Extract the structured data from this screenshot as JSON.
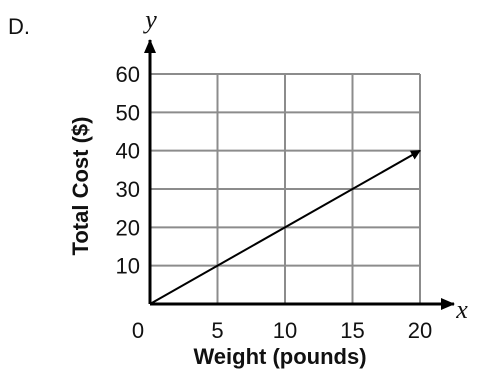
{
  "option_label": "D.",
  "chart_data": {
    "type": "line",
    "title": "",
    "xlabel": "Weight (pounds)",
    "ylabel": "Total Cost ($)",
    "x_var": "x",
    "y_var": "y",
    "xlim": [
      0,
      20
    ],
    "ylim": [
      0,
      60
    ],
    "x_ticks": [
      0,
      5,
      10,
      15,
      20
    ],
    "y_ticks": [
      10,
      20,
      30,
      40,
      50,
      60
    ],
    "origin_label": "0",
    "grid": true,
    "series": [
      {
        "x": [
          0,
          20
        ],
        "y": [
          0,
          40
        ],
        "arrow_end": true
      }
    ]
  },
  "colors": {
    "grid": "#8c8c8c",
    "axis": "#000000",
    "line": "#000000",
    "text": "#111111"
  }
}
